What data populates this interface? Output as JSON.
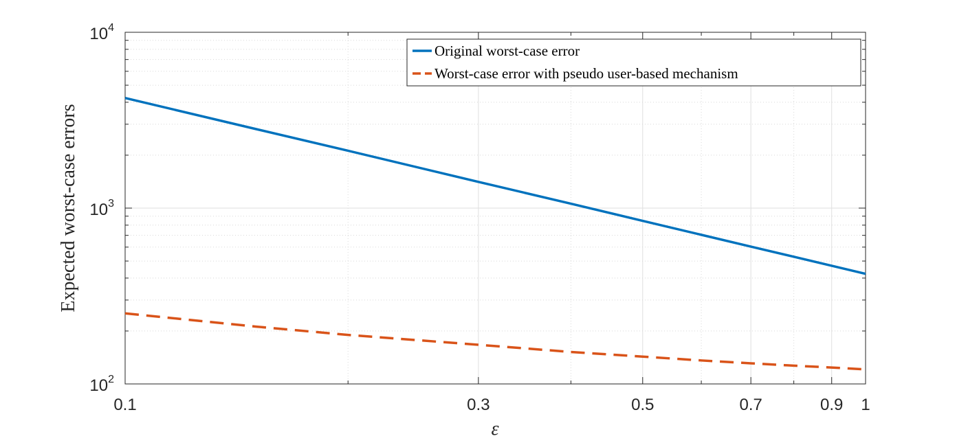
{
  "chart_data": {
    "type": "line",
    "xscale": "log",
    "yscale": "log",
    "xlim": [
      0.1,
      1
    ],
    "ylim": [
      100,
      10000
    ],
    "grid": true,
    "legend_position": "top-right",
    "xlabel": "ε",
    "ylabel": "Expected worst-case errors",
    "x_ticks": [
      0.1,
      0.3,
      0.5,
      0.7,
      0.9,
      1
    ],
    "x_tick_labels": [
      "0.1",
      "0.3",
      "0.5",
      "0.7",
      "0.9",
      "1"
    ],
    "y_ticks": [
      100,
      1000,
      10000
    ],
    "y_tick_labels": [
      {
        "base": "10",
        "exp": "2"
      },
      {
        "base": "10",
        "exp": "3"
      },
      {
        "base": "10",
        "exp": "4"
      }
    ],
    "x": [
      0.1,
      0.15,
      0.2,
      0.3,
      0.4,
      0.5,
      0.6,
      0.7,
      0.8,
      0.9,
      1.0
    ],
    "series": [
      {
        "name": "Original worst-case error",
        "color": "#0072BD",
        "style": "solid",
        "values": [
          4230,
          2820,
          2120,
          1410,
          1060,
          846,
          705,
          604,
          529,
          470,
          423
        ]
      },
      {
        "name": "Worst-case error with pseudo user-based mechanism",
        "color": "#D95319",
        "style": "dashed",
        "values": [
          252,
          212,
          190,
          167,
          152,
          143,
          136,
          131,
          127,
          124,
          121
        ]
      }
    ]
  }
}
